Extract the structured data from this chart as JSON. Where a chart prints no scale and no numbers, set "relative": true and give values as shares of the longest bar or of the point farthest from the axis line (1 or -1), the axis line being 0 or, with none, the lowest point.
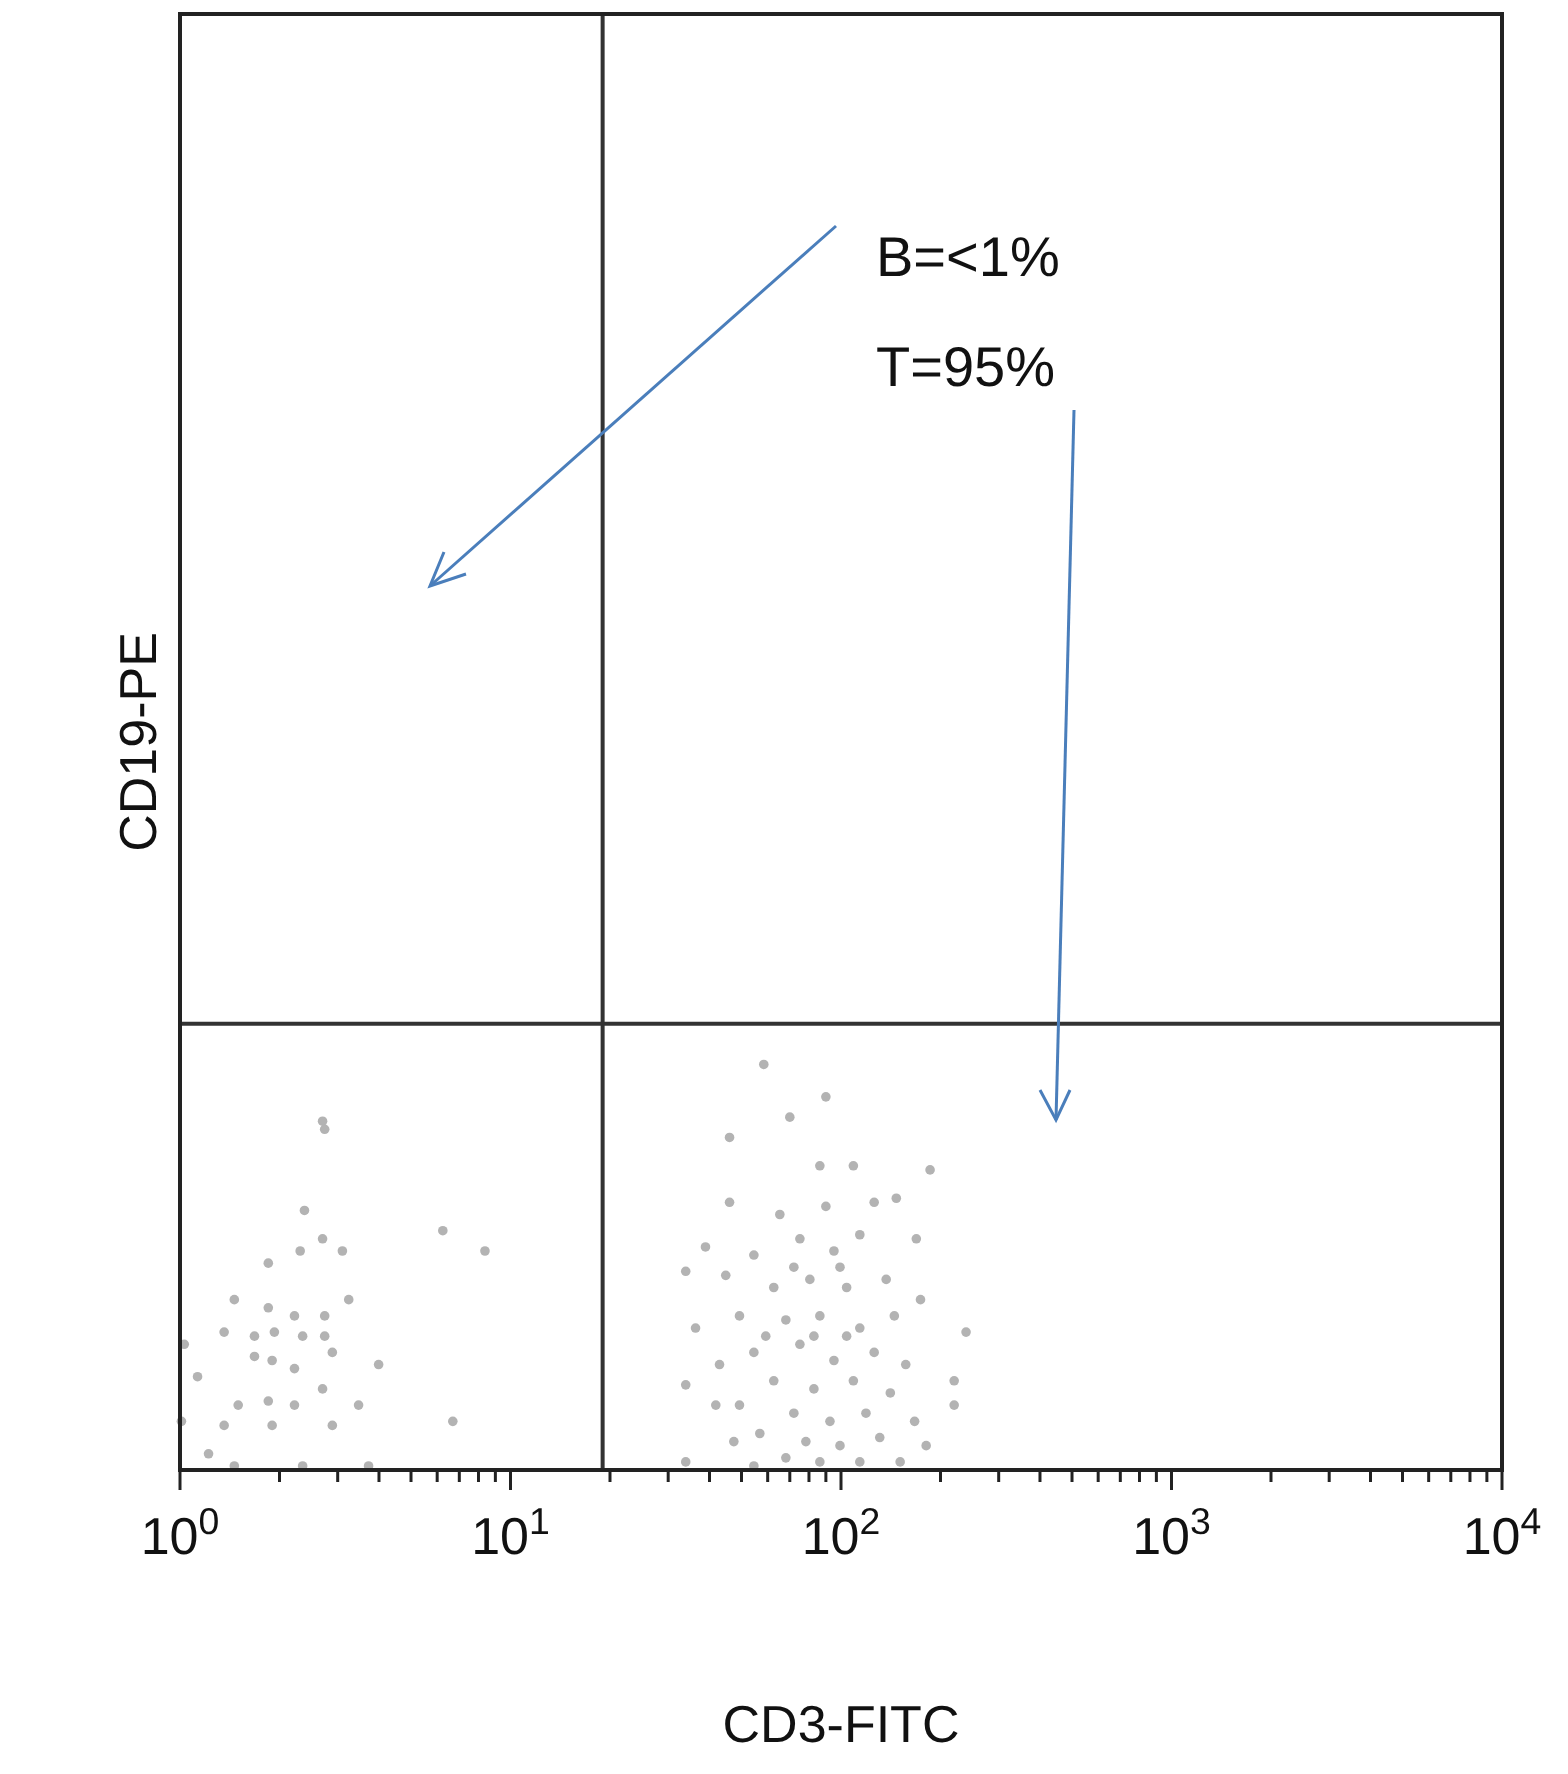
{
  "chart_data": {
    "type": "scatter",
    "xlabel": "CD3-FITC",
    "ylabel": "CD19-PE",
    "log": "x",
    "relative": true,
    "marker": "circle",
    "grid": false,
    "xlim": [
      1,
      10000
    ],
    "xticks": [
      {
        "value": 1,
        "label": "10$^{0}$"
      },
      {
        "value": 2,
        "label": null
      },
      {
        "value": 3,
        "label": null
      },
      {
        "value": 4,
        "label": null
      },
      {
        "value": 5,
        "label": null
      },
      {
        "value": 6,
        "label": null
      },
      {
        "value": 7,
        "label": null
      },
      {
        "value": 8,
        "label": null
      },
      {
        "value": 9,
        "label": null
      },
      {
        "value": 10,
        "label": "10$^{1}$"
      },
      {
        "value": 20,
        "label": null
      },
      {
        "value": 30,
        "label": null
      },
      {
        "value": 40,
        "label": null
      },
      {
        "value": 50,
        "label": null
      },
      {
        "value": 60,
        "label": null
      },
      {
        "value": 70,
        "label": null
      },
      {
        "value": 80,
        "label": null
      },
      {
        "value": 90,
        "label": null
      },
      {
        "value": 100,
        "label": "10$^{2}$"
      },
      {
        "value": 200,
        "label": null
      },
      {
        "value": 300,
        "label": null
      },
      {
        "value": 400,
        "label": null
      },
      {
        "value": 500,
        "label": null
      },
      {
        "value": 600,
        "label": null
      },
      {
        "value": 700,
        "label": null
      },
      {
        "value": 800,
        "label": null
      },
      {
        "value": 900,
        "label": null
      },
      {
        "value": 1000,
        "label": "10$^{3}$"
      },
      {
        "value": 2000,
        "label": null
      },
      {
        "value": 3000,
        "label": null
      },
      {
        "value": 4000,
        "label": null
      },
      {
        "value": 5000,
        "label": null
      },
      {
        "value": 6000,
        "label": null
      },
      {
        "value": 7000,
        "label": null
      },
      {
        "value": 8000,
        "label": null
      },
      {
        "value": 9000,
        "label": null
      },
      {
        "value": 10000,
        "label": "10$^{4}$"
      }
    ],
    "ref_lines": [
      {
        "axis": "x",
        "value": 19,
        "color": "#333333"
      },
      {
        "axis": "y",
        "value": 1.1,
        "color": "#333333"
      }
    ],
    "annotations": [
      "B=<1%",
      "T=95%"
    ],
    "series": [
      {
        "color": "#b3b3b3",
        "x": [
          2.7,
          2.74,
          2.38,
          2.31,
          2.7,
          3.1,
          1.85,
          1.46,
          1.85,
          2.22,
          2.74,
          3.24,
          1.36,
          1.68,
          1.93,
          2.35,
          2.74,
          1.03,
          1.68,
          1.9,
          2.89,
          2.22,
          1.13,
          3.99,
          1.85,
          2.7,
          2.22,
          1.5,
          3.47,
          1.01,
          1.9,
          2.89,
          1.36,
          6.69,
          6.24,
          8.37,
          1.46,
          2.35,
          3.72,
          1.22,
          58.4,
          90,
          70,
          46,
          86.3,
          109,
          186,
          46,
          65.3,
          90,
          126,
          147,
          38.9,
          54.5,
          75.1,
          95.2,
          114,
          169,
          44.8,
          62.6,
          80.5,
          104,
          137,
          174,
          33.9,
          49.3,
          68.1,
          86.3,
          114,
          145,
          239,
          36.3,
          54.5,
          75.1,
          95.2,
          126,
          157,
          42.9,
          62.6,
          82.8,
          109,
          141,
          33.9,
          220,
          49.3,
          72,
          92.6,
          119,
          167,
          41.8,
          220,
          56.8,
          78.3,
          99.3,
          131,
          181,
          47.4,
          68.1,
          86.3,
          114,
          151,
          54.5,
          33.9,
          72,
          99.3,
          82.8,
          104,
          59.2
        ],
        "values": [
          0.86,
          0.84,
          0.64,
          0.54,
          0.57,
          0.54,
          0.51,
          0.42,
          0.4,
          0.38,
          0.38,
          0.42,
          0.34,
          0.33,
          0.34,
          0.33,
          0.33,
          0.31,
          0.28,
          0.27,
          0.29,
          0.25,
          0.23,
          0.26,
          0.17,
          0.2,
          0.16,
          0.16,
          0.16,
          0.12,
          0.11,
          0.11,
          0.11,
          0.12,
          0.59,
          0.54,
          0.01,
          0.01,
          0.01,
          0.04,
          1,
          0.92,
          0.87,
          0.82,
          0.75,
          0.75,
          0.74,
          0.66,
          0.63,
          0.65,
          0.66,
          0.67,
          0.55,
          0.53,
          0.57,
          0.54,
          0.58,
          0.57,
          0.48,
          0.45,
          0.47,
          0.45,
          0.47,
          0.42,
          0.49,
          0.38,
          0.37,
          0.38,
          0.35,
          0.38,
          0.34,
          0.35,
          0.29,
          0.31,
          0.27,
          0.29,
          0.26,
          0.26,
          0.22,
          0.2,
          0.22,
          0.19,
          0.21,
          0.22,
          0.16,
          0.14,
          0.12,
          0.14,
          0.12,
          0.16,
          0.16,
          0.09,
          0.07,
          0.06,
          0.08,
          0.06,
          0.07,
          0.03,
          0.02,
          0.02,
          0.02,
          0.01,
          0.02,
          0.5,
          0.5,
          0.33,
          0.33,
          0.33
        ]
      }
    ]
  }
}
